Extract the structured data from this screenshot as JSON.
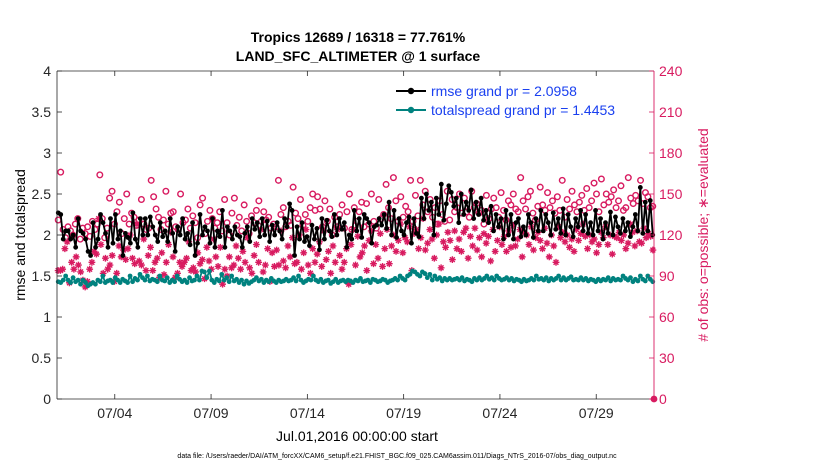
{
  "chart_data": {
    "type": "line",
    "title": "Tropics 12689 / 16318 = 77.761%",
    "subtitle": "LAND_SFC_ALTIMETER @ 1 surface",
    "xlabel": "Jul.01,2016 00:00:00 start",
    "ylabel": "rmse and totalspread",
    "ylabel_right": "# of obs: o=possible; ∗=evaluated",
    "xlim": [
      1,
      32
    ],
    "ylim": [
      0,
      4
    ],
    "ylim_right": [
      0,
      240
    ],
    "x_ticks": [
      {
        "value": 4,
        "label": "07/04"
      },
      {
        "value": 9,
        "label": "07/09"
      },
      {
        "value": 14,
        "label": "07/14"
      },
      {
        "value": 19,
        "label": "07/19"
      },
      {
        "value": 24,
        "label": "07/24"
      },
      {
        "value": 29,
        "label": "07/29"
      }
    ],
    "y_ticks": [
      "0",
      "0.5",
      "1",
      "1.5",
      "2",
      "2.5",
      "3",
      "3.5",
      "4"
    ],
    "y_ticks_right": [
      "0",
      "30",
      "60",
      "90",
      "120",
      "150",
      "180",
      "210",
      "240"
    ],
    "legend": {
      "placement": "top-right",
      "entries": [
        "rmse grand pr = 2.0958",
        "totalspread grand pr = 1.4453"
      ]
    },
    "footer": "data file: /Users/raeder/DAI/ATM_forcXX/CAM6_setup/f.e21.FHIST_BGC.f09_025.CAM6assim.011/Diags_NTrS_2016-07/obs_diag_output.nc",
    "series": [
      {
        "name": "rmse",
        "color": "#000000",
        "values": [
          2.27,
          2.25,
          1.95,
          2.05,
          2.05,
          1.95,
          2.0,
          1.85,
          2.2,
          2.05,
          2.02,
          1.95,
          1.8,
          1.75,
          2.15,
          1.85,
          1.95,
          2.25,
          2.15,
          2.02,
          1.85,
          2.2,
          1.9,
          2.25,
          1.95,
          2.05,
          1.75,
          2.02,
          1.97,
          1.9,
          2.27,
          1.95,
          1.85,
          2.2,
          2.0,
          2.2,
          2.0,
          2.22,
          2.1,
          2.0,
          1.92,
          2.15,
          1.98,
          2.05,
          1.92,
          2.2,
          2.02,
          1.8,
          2.1,
          2.0,
          2.2,
          1.95,
          2.02,
          1.88,
          2.15,
          1.75,
          1.9,
          2.25,
          2.0,
          2.1,
          2.05,
          1.9,
          2.2,
          1.85,
          2.05,
          1.98,
          2.3,
          1.85,
          2.1,
          2.05,
          1.95,
          2.1,
          2.0,
          1.98,
          1.85,
          2.02,
          2.1,
          1.92,
          2.2,
          2.07,
          2.15,
          1.98,
          2.2,
          2.0,
          2.17,
          1.92,
          2.12,
          2.0,
          2.15,
          2.05,
          1.95,
          2.2,
          2.1,
          2.38,
          2.3,
          1.75,
          2.1,
          1.95,
          2.15,
          1.92,
          1.98,
          1.87,
          2.12,
          1.95,
          2.08,
          1.82,
          2.2,
          1.95,
          2.18,
          2.05,
          1.98,
          2.25,
          2.0,
          2.2,
          2.07,
          2.15,
          1.85,
          2.0,
          1.95,
          2.3,
          2.05,
          2.2,
          1.97,
          2.25,
          2.2,
          2.15,
          1.9,
          2.1,
          2.12,
          2.2,
          2.12,
          2.25,
          2.08,
          2.4,
          2.0,
          2.3,
          1.97,
          2.2,
          2.05,
          2.0,
          2.15,
          2.22,
          1.9,
          2.2,
          2.02,
          1.98,
          2.45,
          2.2,
          2.5,
          2.3,
          2.4,
          2.0,
          2.45,
          2.25,
          2.62,
          2.18,
          2.38,
          2.6,
          2.52,
          2.35,
          2.45,
          2.15,
          2.5,
          2.25,
          2.4,
          2.3,
          2.55,
          2.2,
          2.4,
          2.25,
          2.45,
          2.18,
          2.3,
          2.15,
          2.35,
          2.05,
          2.25,
          2.1,
          2.2,
          1.95,
          2.3,
          2.0,
          2.25,
          1.95,
          2.15,
          2.2,
          1.98,
          2.1,
          2.0,
          2.25,
          2.15,
          1.97,
          2.2,
          2.05,
          2.3,
          2.05,
          2.25,
          2.15,
          2.0,
          2.27,
          2.07,
          2.2,
          2.02,
          2.32,
          2.0,
          2.25,
          2.1,
          1.98,
          2.2,
          2.1,
          2.3,
          2.05,
          2.25,
          2.02,
          2.15,
          2.0,
          2.3,
          2.05,
          2.2,
          1.95,
          2.15,
          2.02,
          2.28,
          2.0,
          2.22,
          2.1,
          2.02,
          2.2,
          2.05,
          2.15,
          1.98,
          2.1,
          2.25,
          2.05,
          2.58,
          2.02,
          2.4,
          2.05,
          2.42,
          2.0
        ]
      },
      {
        "name": "totalspread",
        "color": "#00827f",
        "values": [
          1.43,
          1.42,
          1.45,
          1.5,
          1.45,
          1.42,
          1.48,
          1.43,
          1.45,
          1.4,
          1.45,
          1.42,
          1.38,
          1.4,
          1.42,
          1.4,
          1.45,
          1.43,
          1.5,
          1.42,
          1.44,
          1.45,
          1.42,
          1.48,
          1.45,
          1.42,
          1.46,
          1.44,
          1.42,
          1.5,
          1.43,
          1.47,
          1.45,
          1.52,
          1.48,
          1.45,
          1.5,
          1.44,
          1.46,
          1.45,
          1.43,
          1.5,
          1.45,
          1.44,
          1.48,
          1.42,
          1.45,
          1.43,
          1.5,
          1.46,
          1.43,
          1.45,
          1.42,
          1.48,
          1.44,
          1.45,
          1.5,
          1.45,
          1.56,
          1.55,
          1.48,
          1.56,
          1.45,
          1.42,
          1.46,
          1.44,
          1.52,
          1.45,
          1.48,
          1.43,
          1.5,
          1.44,
          1.46,
          1.42,
          1.45,
          1.4,
          1.44,
          1.41,
          1.43,
          1.45,
          1.48,
          1.44,
          1.46,
          1.42,
          1.45,
          1.43,
          1.47,
          1.44,
          1.42,
          1.45,
          1.43,
          1.44,
          1.46,
          1.44,
          1.45,
          1.48,
          1.44,
          1.5,
          1.45,
          1.42,
          1.44,
          1.46,
          1.45,
          1.5,
          1.45,
          1.43,
          1.46,
          1.42,
          1.44,
          1.45,
          1.41,
          1.43,
          1.46,
          1.42,
          1.44,
          1.45,
          1.43,
          1.45,
          1.44,
          1.42,
          1.45,
          1.44,
          1.47,
          1.43,
          1.44,
          1.45,
          1.42,
          1.46,
          1.45,
          1.43,
          1.44,
          1.46,
          1.45,
          1.42,
          1.44,
          1.45,
          1.47,
          1.45,
          1.5,
          1.47,
          1.45,
          1.5,
          1.52,
          1.56,
          1.55,
          1.52,
          1.5,
          1.55,
          1.53,
          1.48,
          1.52,
          1.45,
          1.5,
          1.46,
          1.48,
          1.44,
          1.47,
          1.45,
          1.47,
          1.45,
          1.46,
          1.47,
          1.45,
          1.48,
          1.44,
          1.46,
          1.45,
          1.43,
          1.47,
          1.45,
          1.48,
          1.45,
          1.47,
          1.5,
          1.46,
          1.48,
          1.45,
          1.5,
          1.47,
          1.45,
          1.46,
          1.48,
          1.45,
          1.47,
          1.44,
          1.46,
          1.45,
          1.43,
          1.46,
          1.44,
          1.45,
          1.47,
          1.45,
          1.5,
          1.46,
          1.47,
          1.45,
          1.48,
          1.44,
          1.47,
          1.45,
          1.47,
          1.5,
          1.45,
          1.48,
          1.45,
          1.47,
          1.49,
          1.45,
          1.46,
          1.45,
          1.48,
          1.45,
          1.47,
          1.44,
          1.46,
          1.45,
          1.43,
          1.46,
          1.44,
          1.46,
          1.45,
          1.48,
          1.44,
          1.47,
          1.45,
          1.46,
          1.45,
          1.5,
          1.47,
          1.45,
          1.48,
          1.43,
          1.46,
          1.44,
          1.5,
          1.46,
          1.44,
          1.5,
          1.46,
          1.43
        ]
      },
      {
        "name": "obs possible",
        "color": "#d81b60",
        "marker": "o",
        "values": [
          131,
          166,
          124,
          118,
          126,
          123,
          120,
          128,
          132,
          117,
          125,
          121,
          126,
          119,
          130,
          124,
          128,
          164,
          132,
          118,
          125,
          147,
          152,
          128,
          137,
          144,
          121,
          132,
          150,
          128,
          136,
          133,
          127,
          131,
          146,
          128,
          124,
          125,
          160,
          148,
          139,
          133,
          124,
          131,
          152,
          128,
          136,
          137,
          126,
          124,
          150,
          129,
          131,
          139,
          125,
          134,
          129,
          118,
          142,
          147,
          121,
          130,
          138,
          132,
          125,
          129,
          137,
          123,
          146,
          129,
          120,
          136,
          147,
          127,
          133,
          123,
          142,
          130,
          121,
          134,
          129,
          138,
          145,
          130,
          137,
          131,
          133,
          125,
          128,
          126,
          160,
          135,
          140,
          126,
          130,
          127,
          155,
          136,
          132,
          146,
          127,
          135,
          130,
          140,
          150,
          138,
          148,
          139,
          126,
          145,
          130,
          139,
          120,
          133,
          126,
          135,
          142,
          125,
          137,
          150,
          124,
          140,
          130,
          137,
          144,
          126,
          143,
          128,
          150,
          130,
          125,
          146,
          132,
          135,
          157,
          140,
          132,
          162,
          145,
          130,
          148,
          133,
          141,
          137,
          160,
          130,
          149,
          134,
          160,
          142,
          152,
          137,
          146,
          133,
          140,
          128,
          145,
          135,
          130,
          152,
          131,
          146,
          137,
          140,
          150,
          136,
          147,
          137,
          133,
          152,
          140,
          143,
          136,
          138,
          128,
          149,
          132,
          139,
          147,
          140,
          133,
          151,
          138,
          131,
          145,
          142,
          150,
          139,
          137,
          162,
          145,
          139,
          148,
          152,
          136,
          131,
          141,
          155,
          142,
          138,
          151,
          140,
          145,
          136,
          148,
          138,
          160,
          133,
          146,
          139,
          152,
          142,
          137,
          144,
          149,
          138,
          154,
          140,
          145,
          158,
          150,
          137,
          161,
          142,
          150,
          144,
          148,
          153,
          140,
          145,
          156,
          138,
          140,
          162,
          147,
          143,
          149,
          145,
          160,
          143,
          151,
          148,
          140,
          141
        ]
      },
      {
        "name": "obs evaluated",
        "color": "#d81b60",
        "marker": "*",
        "values": [
          94,
          94,
          95,
          110,
          115,
          85,
          100,
          95,
          104,
          98,
          93,
          87,
          82,
          86,
          95,
          100,
          108,
          106,
          132,
          113,
          92,
          103,
          95,
          98,
          105,
          86,
          92,
          112,
          104,
          109,
          102,
          110,
          120,
          103,
          99,
          128,
          101,
          98,
          117,
          94,
          105,
          111,
          94,
          100,
          103,
          89,
          107,
          91,
          100,
          113,
          122,
          104,
          89,
          92,
          100,
          97,
          100,
          103,
          115,
          94,
          96,
          93,
          107,
          99,
          102,
          88,
          111,
          101,
          95,
          117,
          104,
          97,
          111,
          84,
          95,
          90,
          104,
          96,
          98,
          112,
          103,
          95,
          108,
          100,
          118,
          96,
          92,
          105,
          113,
          100,
          124,
          93,
          98,
          110,
          86,
          107,
          97,
          109,
          98,
          123,
          101,
          96,
          112,
          104,
          118,
          99,
          100,
          120,
          95,
          107,
          124,
          98,
          92,
          110,
          100,
          106,
          115,
          97,
          123,
          102,
          108,
          92,
          112,
          100,
          124,
          105,
          95,
          100,
          110,
          84,
          113,
          124,
          98,
          119,
          104,
          107,
          112,
          94,
          116,
          123,
          99,
          113,
          103,
          121,
          97,
          110,
          124,
          99,
          112,
          120,
          108,
          116,
          128,
          107,
          118,
          115,
          126,
          94,
          121,
          124,
          110,
          118,
          132,
          109,
          114,
          124,
          117,
          103,
          120,
          128,
          96,
          115,
          111,
          122,
          116,
          102,
          123,
          110,
          117,
          108,
          122,
          125,
          103,
          119,
          112,
          125,
          109,
          118,
          104,
          121,
          114,
          119,
          101,
          124,
          108,
          116,
          126,
          113,
          119,
          108,
          123,
          111,
          127,
          112,
          117,
          124,
          104,
          122,
          120,
          113,
          126,
          109,
          118,
          122,
          116,
          110,
          125,
          114,
          104,
          120,
          112,
          100,
          126,
          118,
          122,
          115,
          120,
          111,
          117,
          108,
          124,
          116,
          121,
          128,
          119,
          110,
          120,
          115,
          117,
          107,
          113,
          122,
          118,
          126,
          113,
          120,
          106,
          119,
          118,
          122,
          116,
          120,
          110,
          114,
          128,
          122,
          112,
          123,
          115,
          114,
          125,
          118,
          121,
          119,
          109
        ]
      }
    ]
  }
}
